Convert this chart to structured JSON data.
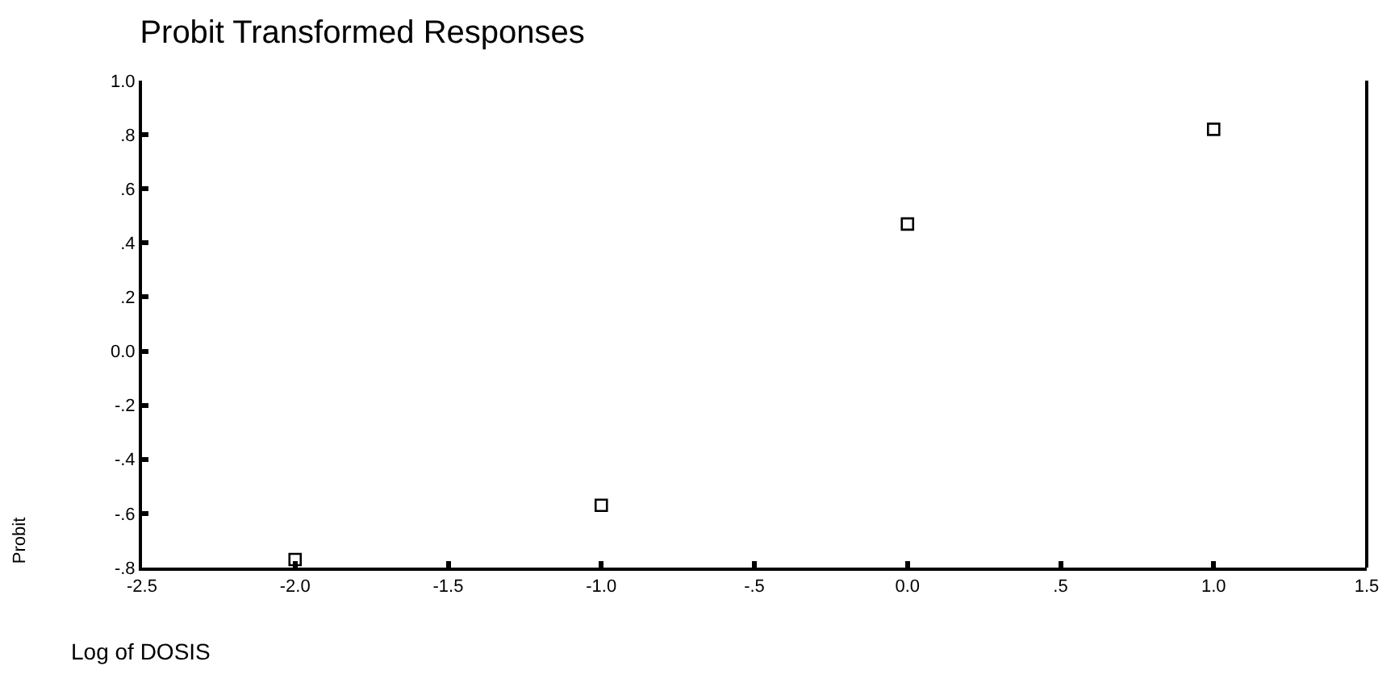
{
  "chart_data": {
    "type": "scatter",
    "title": "Probit Transformed Responses",
    "xlabel": "Log of DOSIS",
    "ylabel": "Probit",
    "x": [
      -2.0,
      -1.0,
      0.0,
      1.0
    ],
    "series": [
      {
        "color": "#000000",
        "values": [
          -0.77,
          -0.57,
          0.47,
          0.82
        ]
      }
    ],
    "marker": "square",
    "legend": false,
    "xlim": [
      -2.5,
      1.5
    ],
    "xticks": [
      {
        "value": -2.5,
        "label": "-2.5"
      },
      {
        "value": -2.0,
        "label": "-2.0"
      },
      {
        "value": -1.5,
        "label": "-1.5"
      },
      {
        "value": -1.0,
        "label": "-1.0"
      },
      {
        "value": -0.5,
        "label": "-.5"
      },
      {
        "value": 0,
        "label": "0.0"
      },
      {
        "value": 0.5,
        "label": ".5"
      },
      {
        "value": 1.0,
        "label": "1.0"
      },
      {
        "value": 1.5,
        "label": "1.5"
      }
    ],
    "ylim": [
      -0.8,
      1.0
    ],
    "yticks": [
      {
        "value": 1.0,
        "label": "1.0"
      },
      {
        "value": 0.8,
        "label": ".8"
      },
      {
        "value": 0.6,
        "label": ".6"
      },
      {
        "value": 0.4,
        "label": ".4"
      },
      {
        "value": 0.2,
        "label": ".2"
      },
      {
        "value": 0,
        "label": "0.0"
      },
      {
        "value": -0.2,
        "label": "-.2"
      },
      {
        "value": -0.4,
        "label": "-.4"
      },
      {
        "value": -0.6,
        "label": "-.6"
      },
      {
        "value": -0.8,
        "label": "-.8"
      }
    ]
  }
}
